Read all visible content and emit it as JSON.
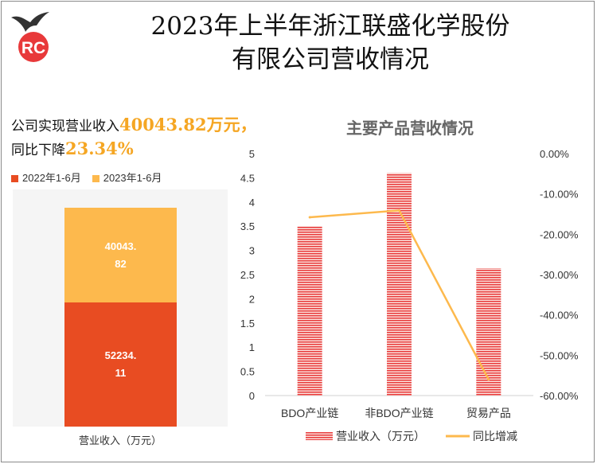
{
  "logo": {
    "text": "RC",
    "color": "#e8393a"
  },
  "title": {
    "line1": "2023年上半年浙江联盛化学股份",
    "line2": "有限公司营收情况"
  },
  "summary": {
    "prefix": "公司实现营业收入",
    "revenue": "40043.82万元，",
    "prefix2": "同比下降",
    "decline": "23.34%"
  },
  "colors": {
    "orange_red": "#e84c22",
    "gold": "#fdb94d",
    "line": "#fdb94d",
    "bar_hatch": "#e8393a",
    "highlight": "#f5a623"
  },
  "chart_data": [
    {
      "type": "bar",
      "stacked": true,
      "categories": [
        "营业收入（万元）"
      ],
      "series": [
        {
          "name": "2022年1-6月",
          "values": [
            52234.11
          ],
          "label": "52234.\n11",
          "color": "#e84c22"
        },
        {
          "name": "2023年1-6月",
          "values": [
            40043.82
          ],
          "label": "40043.\n82",
          "color": "#fdb94d"
        }
      ],
      "legend": "top-left"
    },
    {
      "type": "bar",
      "title": "主要产品营收情况",
      "categories": [
        "BDO产业链",
        "非BDO产业链",
        "贸易产品"
      ],
      "series": [
        {
          "name": "营业收入（万元）",
          "type": "bar",
          "axis": "left",
          "values": [
            3.5,
            4.6,
            2.63
          ]
        },
        {
          "name": "同比增减",
          "type": "line",
          "axis": "right",
          "values": [
            -15.8,
            -14.1,
            -56.0
          ]
        }
      ],
      "y_left": {
        "min": 0,
        "max": 5,
        "ticks": [
          "0",
          "0.5",
          "1",
          "1.5",
          "2",
          "2.5",
          "3",
          "3.5",
          "4",
          "4.5",
          "5"
        ]
      },
      "y_right": {
        "min": -60,
        "max": 0,
        "ticks": [
          "0.00%",
          "-10.00%",
          "-20.00%",
          "-30.00%",
          "-40.00%",
          "-50.00%",
          "-60.00%"
        ]
      },
      "legend": "bottom"
    }
  ]
}
